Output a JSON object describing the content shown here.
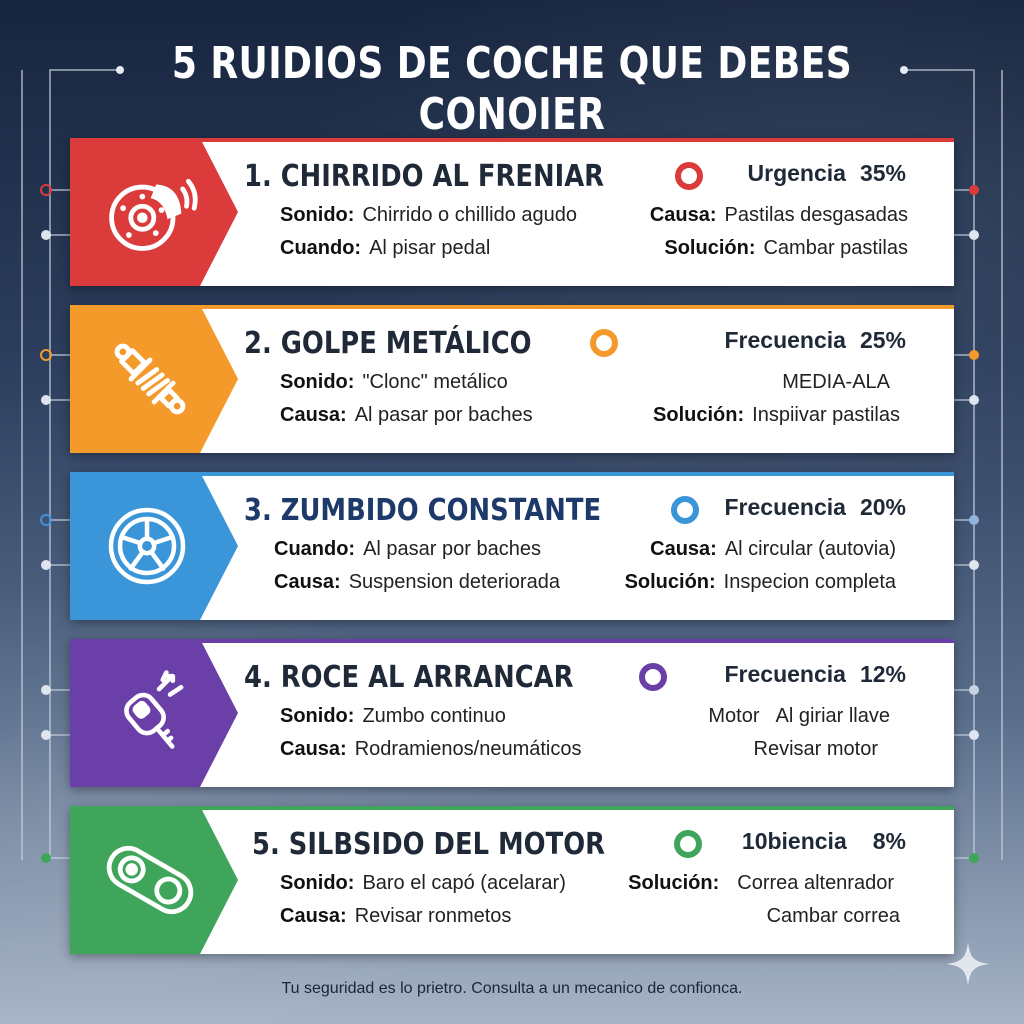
{
  "title": "5 RUIDIOS DE COCHE QUE DEBES CONOIER",
  "cards": [
    {
      "heading": "1. CHIRRIDO AL FRENIAR",
      "icon": "brake-disc-icon",
      "color": "#dc3b3b",
      "metric": {
        "label": "Urgencia",
        "value": "35%"
      },
      "left": [
        {
          "label": "Sonido:",
          "value": "Chirrido o chillido agudo"
        },
        {
          "label": "Cuando:",
          "value": "Al pisar pedal"
        }
      ],
      "right": [
        {
          "label": "Causa:",
          "value": "Pastilas desgasadas"
        },
        {
          "label": "Solución:",
          "value": "Cambar pastilas"
        }
      ]
    },
    {
      "heading": "2. GOLPE METÁLICO",
      "icon": "shock-absorber-icon",
      "color": "#f39a2b",
      "metric": {
        "label": "Frecuencia",
        "value": "25%"
      },
      "left": [
        {
          "label": "Sonido:",
          "value": "\"Clonc\" metálico"
        },
        {
          "label": "Causa:",
          "value": "Al pasar por baches"
        }
      ],
      "right": [
        {
          "label": "",
          "value": "MEDIA-ALA"
        },
        {
          "label": "Solución:",
          "value": "Inspiivar pastilas"
        }
      ]
    },
    {
      "heading": "3. ZUMBIDO CONSTANTE",
      "icon": "wheel-icon",
      "color": "#3b95d9",
      "headingColor": "#1e3a6b",
      "metric": {
        "label": "Frecuencia",
        "value": "20%"
      },
      "left": [
        {
          "label": "Cuando:",
          "value": "Al pasar por baches"
        },
        {
          "label": "Causa:",
          "value": "Suspension deteriorada"
        }
      ],
      "right": [
        {
          "label": "Causa:",
          "value": "Al circular (autovia)"
        },
        {
          "label": "Solución:",
          "value": "Inspecion completa"
        }
      ]
    },
    {
      "heading": "4. ROCE AL ARRANCAR",
      "icon": "car-key-icon",
      "color": "#6b3fa8",
      "metric": {
        "label": "Frecuencia",
        "value": "12%"
      },
      "left": [
        {
          "label": "Sonido:",
          "value": "Zumbo continuo"
        },
        {
          "label": "Causa:",
          "value": "Rodramienos/neumáticos"
        }
      ],
      "right": [
        {
          "label": "Motor",
          "value": "Al giriar llave"
        },
        {
          "label": "",
          "value": "Revisar motor"
        }
      ]
    },
    {
      "heading": "5. SILBSIDO DEL MOTOR",
      "icon": "belt-pulley-icon",
      "color": "#3fa55a",
      "metric": {
        "label": "10biencia",
        "value": "8%"
      },
      "left": [
        {
          "label": "Sonido:",
          "value": "Baro el capó (acelarar)"
        },
        {
          "label": "Causa:",
          "value": "Revisar ronmetos"
        }
      ],
      "right": [
        {
          "label": "Solución:",
          "value": "Correa altenrador"
        },
        {
          "label": "",
          "value": "Cambar correa"
        }
      ]
    }
  ],
  "footer": "Tu seguridad es lo prietro. Consulta a un mecanico de confionca.",
  "decor": {
    "sparkle": "sparkle-icon",
    "circuit": "circuit-lines"
  }
}
